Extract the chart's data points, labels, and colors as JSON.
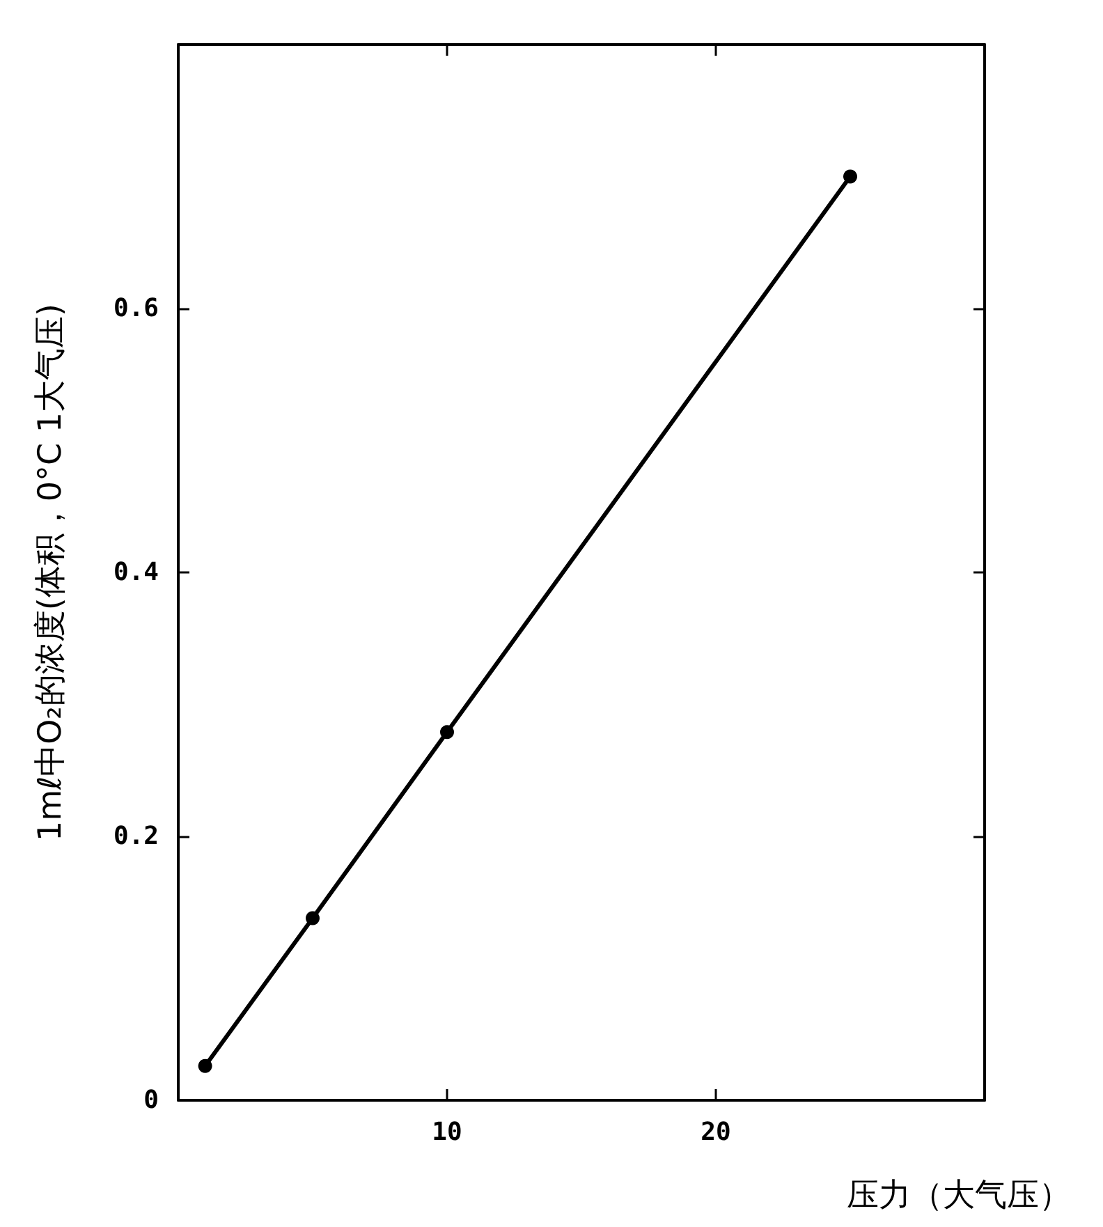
{
  "chart_data": {
    "type": "line",
    "xlabel": "压力（大气压）",
    "ylabel": "1mℓ中O₂的浓度(体积，0°C 1大气压)",
    "x": [
      1,
      5,
      10,
      25
    ],
    "series": [
      {
        "color": "#000000",
        "values": [
          0.026,
          0.138,
          0.279,
          0.7
        ]
      }
    ],
    "xlim": [
      0,
      30
    ],
    "xticks": [
      10,
      20
    ],
    "ylim": [
      0,
      0.8
    ],
    "yticks": [
      0,
      0.2,
      0.4,
      0.6
    ],
    "grid": false,
    "marker": "circle",
    "line_style": "solid"
  }
}
